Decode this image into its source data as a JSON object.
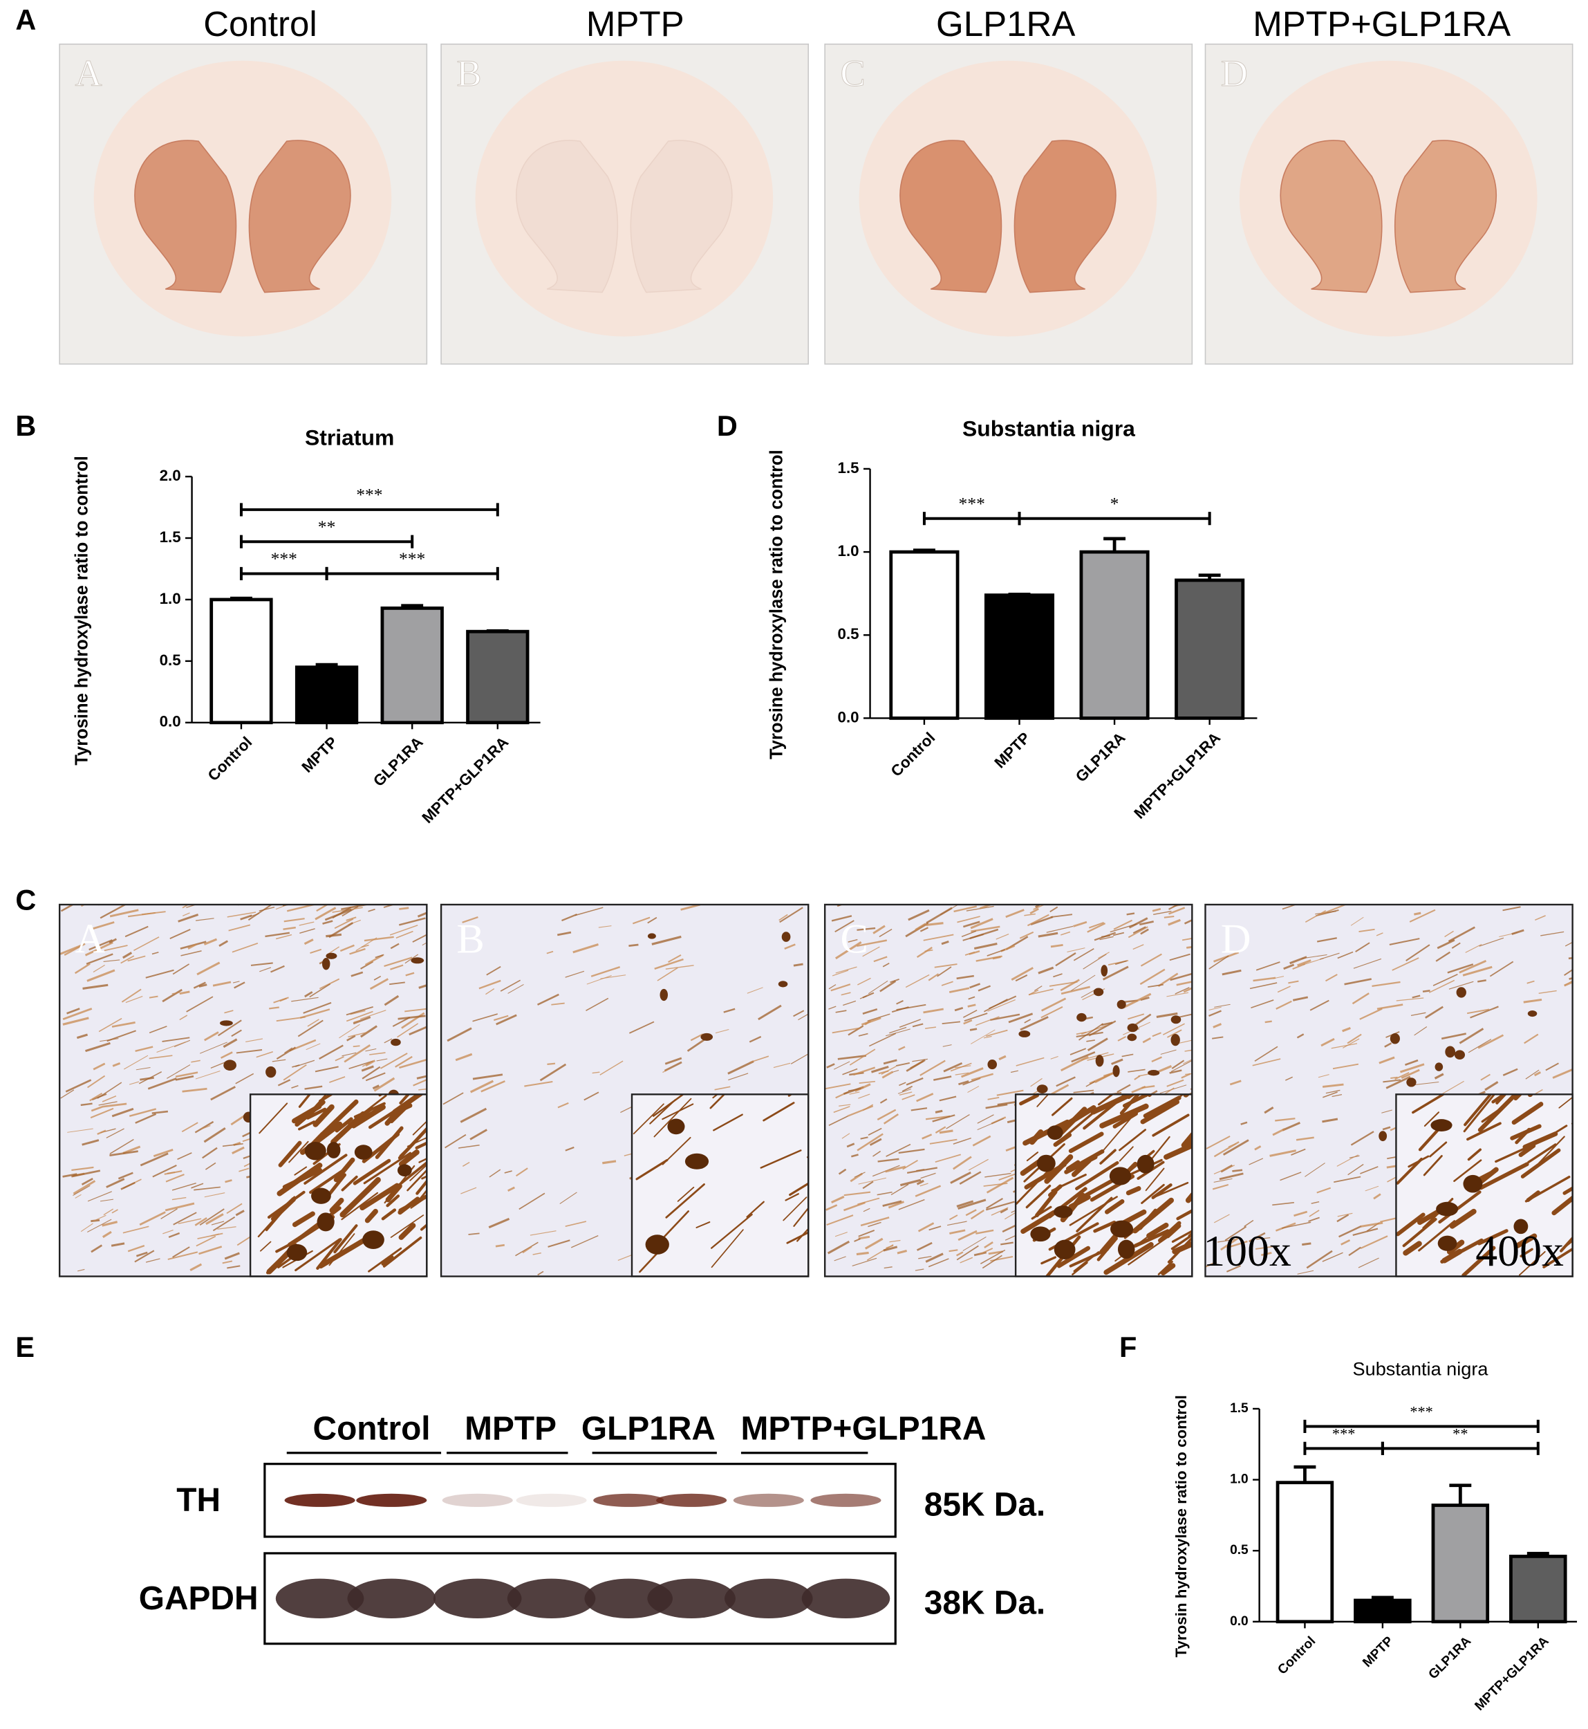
{
  "panel_labels": [
    "A",
    "B",
    "D",
    "C",
    "E",
    "F"
  ],
  "figure_a": {
    "headers": [
      "Control",
      "MPTP",
      "GLP1RA",
      "MPTP+GLP1RA"
    ],
    "image_letters": [
      "A",
      "B",
      "C",
      "D"
    ]
  },
  "figure_c": {
    "image_letters": [
      "A",
      "B",
      "C",
      "D"
    ],
    "magnifications": [
      "100x",
      "400x"
    ]
  },
  "western_blot": {
    "groups": [
      "Control",
      "MPTP",
      "GLP1RA",
      "MPTP+GLP1RA"
    ],
    "rows": [
      {
        "label": "TH",
        "size": "85K Da."
      },
      {
        "label": "GAPDH",
        "size": "38K Da."
      }
    ]
  },
  "chart_data": [
    {
      "type": "bar",
      "title": "Striatum",
      "y_label": "Tyrosine hydroxylase ratio to control",
      "categories": [
        "Control",
        "MPTP",
        "GLP1RA",
        "MPTP+GLP1RA"
      ],
      "values": [
        1.0,
        0.45,
        0.93,
        0.74
      ],
      "errors": [
        0.01,
        0.02,
        0.02,
        0.005
      ],
      "colors": [
        "#ffffff",
        "#000000",
        "#a0a0a2",
        "#5e5e5e"
      ],
      "ylim": [
        0,
        2
      ],
      "yticks": [
        {
          "value": 0,
          "label": "0.0"
        },
        {
          "value": 0.5,
          "label": "0.5"
        },
        {
          "value": 1,
          "label": "1.0"
        },
        {
          "value": 1.5,
          "label": "1.5"
        },
        {
          "value": 2,
          "label": "2.0"
        }
      ],
      "significance": [
        {
          "from": "Control",
          "to": "MPTP",
          "label": "***"
        },
        {
          "from": "MPTP",
          "to": "MPTP+GLP1RA",
          "label": "***"
        },
        {
          "from": "Control",
          "to": "GLP1RA",
          "label": "**"
        },
        {
          "from": "Control",
          "to": "MPTP+GLP1RA",
          "label": "***"
        }
      ]
    },
    {
      "type": "bar",
      "title": "Substantia nigra",
      "y_label": "Tyrosine hydroxylase ratio to control",
      "categories": [
        "Control",
        "MPTP",
        "GLP1RA",
        "MPTP+GLP1RA"
      ],
      "values": [
        1.0,
        0.74,
        1.0,
        0.83
      ],
      "errors": [
        0.01,
        0.005,
        0.08,
        0.03
      ],
      "colors": [
        "#ffffff",
        "#000000",
        "#a0a0a2",
        "#5e5e5e"
      ],
      "ylim": [
        0,
        1.5
      ],
      "yticks": [
        {
          "value": 0,
          "label": "0.0"
        },
        {
          "value": 0.5,
          "label": "0.5"
        },
        {
          "value": 1,
          "label": "1.0"
        },
        {
          "value": 1.5,
          "label": "1.5"
        }
      ],
      "significance": [
        {
          "from": "Control",
          "to": "MPTP",
          "label": "***"
        },
        {
          "from": "MPTP",
          "to": "MPTP+GLP1RA",
          "label": "*"
        }
      ]
    },
    {
      "type": "bar",
      "title": "Substantia nigra",
      "y_label": "Tyrosin hydroxylase ratio to control",
      "categories": [
        "Control",
        "MPTP",
        "GLP1RA",
        "MPTP+GLP1RA"
      ],
      "values": [
        0.98,
        0.15,
        0.82,
        0.46
      ],
      "errors": [
        0.11,
        0.02,
        0.14,
        0.02
      ],
      "colors": [
        "#ffffff",
        "#000000",
        "#a0a0a2",
        "#5e5e5e"
      ],
      "ylim": [
        0,
        1.5
      ],
      "yticks": [
        {
          "value": 0,
          "label": "0.0"
        },
        {
          "value": 0.5,
          "label": "0.5"
        },
        {
          "value": 1,
          "label": "1.0"
        },
        {
          "value": 1.5,
          "label": "1.5"
        }
      ],
      "significance": [
        {
          "from": "Control",
          "to": "MPTP",
          "label": "***"
        },
        {
          "from": "MPTP",
          "to": "MPTP+GLP1RA",
          "label": "**"
        },
        {
          "from": "Control",
          "to": "MPTP+GLP1RA",
          "label": "***"
        }
      ]
    }
  ]
}
